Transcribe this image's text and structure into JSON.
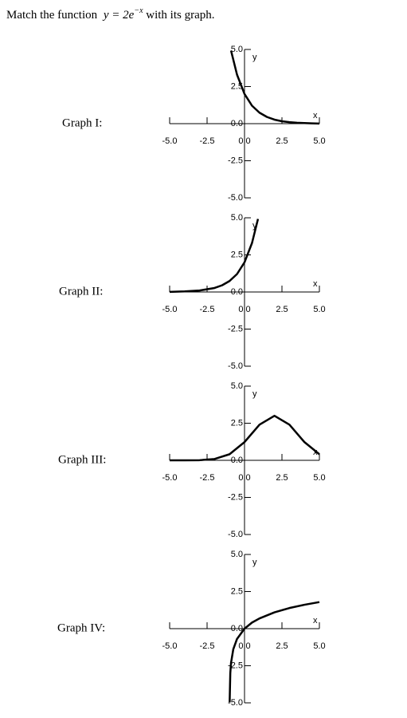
{
  "question": {
    "before": "Match the function ",
    "formula": "y = 2e",
    "exponent": "−x",
    "after": " with its graph."
  },
  "chart_data": [
    {
      "type": "line",
      "title": "Graph I:",
      "x_label": "x",
      "y_label": "y",
      "xlim": [
        -5,
        5
      ],
      "ylim": [
        -5,
        5
      ],
      "xticks": [
        {
          "value": -5,
          "label": "-5.0"
        },
        {
          "value": -2.5,
          "label": "-2.5"
        },
        {
          "value": 0,
          "label": "0.0"
        },
        {
          "value": 2.5,
          "label": "2.5"
        },
        {
          "value": 5,
          "label": "5.0"
        }
      ],
      "yticks": [
        {
          "value": -5,
          "label": "-5.0"
        },
        {
          "value": -2.5,
          "label": "-2.5"
        },
        {
          "value": 0,
          "label": "0.0"
        },
        {
          "value": 2.5,
          "label": "2.5"
        },
        {
          "value": 5,
          "label": "5.0"
        }
      ],
      "color": "#000000",
      "x": [
        -0.9,
        -0.5,
        0,
        0.5,
        1,
        1.5,
        2,
        2.5,
        3,
        3.5,
        4,
        4.5,
        5
      ],
      "values": [
        4.92,
        3.3,
        2,
        1.21,
        0.74,
        0.45,
        0.27,
        0.16,
        0.1,
        0.06,
        0.04,
        0.02,
        0.01
      ]
    },
    {
      "type": "line",
      "title": "Graph II:",
      "x_label": "x",
      "y_label": "y",
      "xlim": [
        -5,
        5
      ],
      "ylim": [
        -5,
        5
      ],
      "xticks": [
        {
          "value": -5,
          "label": "-5.0"
        },
        {
          "value": -2.5,
          "label": "-2.5"
        },
        {
          "value": 0,
          "label": "0.0"
        },
        {
          "value": 2.5,
          "label": "2.5"
        },
        {
          "value": 5,
          "label": "5.0"
        }
      ],
      "yticks": [
        {
          "value": -5,
          "label": "-5.0"
        },
        {
          "value": -2.5,
          "label": "-2.5"
        },
        {
          "value": 0,
          "label": "0.0"
        },
        {
          "value": 2.5,
          "label": "2.5"
        },
        {
          "value": 5,
          "label": "5.0"
        }
      ],
      "color": "#000000",
      "x": [
        -5,
        -4,
        -3,
        -2,
        -1.5,
        -1,
        -0.5,
        0,
        0.5,
        0.9
      ],
      "values": [
        0.01,
        0.04,
        0.1,
        0.27,
        0.45,
        0.74,
        1.21,
        2,
        3.3,
        4.92
      ]
    },
    {
      "type": "line",
      "title": "Graph III:",
      "x_label": "x",
      "y_label": "y",
      "xlim": [
        -5,
        5
      ],
      "ylim": [
        -5,
        5
      ],
      "xticks": [
        {
          "value": -5,
          "label": "-5.0"
        },
        {
          "value": -2.5,
          "label": "-2.5"
        },
        {
          "value": 0,
          "label": "0.0"
        },
        {
          "value": 2.5,
          "label": "2.5"
        },
        {
          "value": 5,
          "label": "5.0"
        }
      ],
      "yticks": [
        {
          "value": -5,
          "label": "-5.0"
        },
        {
          "value": -2.5,
          "label": "-2.5"
        },
        {
          "value": 0,
          "label": "0.0"
        },
        {
          "value": 2.5,
          "label": "2.5"
        },
        {
          "value": 5,
          "label": "5.0"
        }
      ],
      "color": "#000000",
      "x": [
        -5,
        -4,
        -3,
        -2,
        -1,
        0,
        1,
        2,
        3,
        4,
        5
      ],
      "values": [
        0,
        0,
        0.01,
        0.09,
        0.41,
        1.23,
        2.4,
        3,
        2.4,
        1.23,
        0.41
      ]
    },
    {
      "type": "line",
      "title": "Graph IV:",
      "x_label": "x",
      "y_label": "y",
      "xlim": [
        -5,
        5
      ],
      "ylim": [
        -5,
        5
      ],
      "xticks": [
        {
          "value": -5,
          "label": "-5.0"
        },
        {
          "value": -2.5,
          "label": "-2.5"
        },
        {
          "value": 0,
          "label": "0.0"
        },
        {
          "value": 2.5,
          "label": "2.5"
        },
        {
          "value": 5,
          "label": "5.0"
        }
      ],
      "yticks": [
        {
          "value": -5,
          "label": "-5.0"
        },
        {
          "value": -2.5,
          "label": "-2.5"
        },
        {
          "value": 0,
          "label": "0.0"
        },
        {
          "value": 2.5,
          "label": "2.5"
        },
        {
          "value": 5,
          "label": "5.0"
        }
      ],
      "color": "#000000",
      "x": [
        -0.993,
        -0.95,
        -0.9,
        -0.75,
        -0.5,
        0,
        0.5,
        1,
        2,
        3,
        4,
        5
      ],
      "values": [
        -4.96,
        -3,
        -2.3,
        -1.39,
        -0.69,
        0,
        0.41,
        0.69,
        1.1,
        1.39,
        1.61,
        1.79
      ]
    }
  ]
}
